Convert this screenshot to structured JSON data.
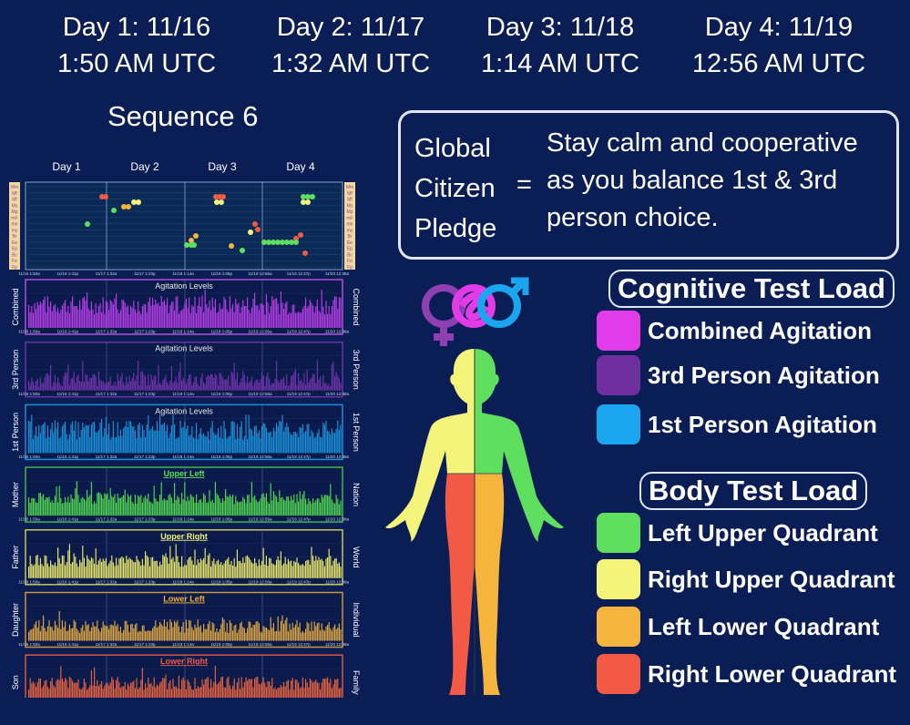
{
  "days": [
    {
      "date": "Day 1:  11/16",
      "time": "1:50 AM UTC"
    },
    {
      "date": "Day 2:  11/17",
      "time": "1:32 AM UTC"
    },
    {
      "date": "Day 3:  11/18",
      "time": "1:14 AM UTC"
    },
    {
      "date": "Day 4:  11/19",
      "time": "12:56 AM UTC"
    }
  ],
  "sequence_title": "Sequence 6",
  "pledge": {
    "left_lines": [
      "Global",
      "Citizen",
      "Pledge"
    ],
    "equals": "=",
    "text_lines": [
      "Stay calm and cooperative",
      "as you balance 1st & 3rd",
      "person choice."
    ]
  },
  "cognitive": {
    "heading": "Cognitive Test Load",
    "items": [
      {
        "label": "Combined Agitation",
        "color": "#e23ce8"
      },
      {
        "label": "3rd Person Agitation",
        "color": "#6f2f9f"
      },
      {
        "label": "1st Person Agitation",
        "color": "#19a6ee"
      }
    ]
  },
  "body": {
    "heading": "Body Test Load",
    "items": [
      {
        "label": "Left Upper Quadrant",
        "color": "#5ee05e"
      },
      {
        "label": "Right Upper Quadrant",
        "color": "#f4f47a"
      },
      {
        "label": "Left Lower Quadrant",
        "color": "#f5b43c"
      },
      {
        "label": "Right Lower Quadrant",
        "color": "#f35a45"
      }
    ]
  },
  "top_chart": {
    "day_labels": [
      "Day 1",
      "Day 2",
      "Day 3",
      "Day 4"
    ],
    "y_labels": [
      "Mm",
      "Mf",
      "Mf",
      "Ms",
      "Mp",
      "mF",
      "me",
      "my",
      "Br",
      "Ee",
      "Ep",
      "Bc",
      "Fe",
      "Fp"
    ],
    "x_ticks": [
      "11/16 1:50a",
      "11/16 1:41p",
      "11/17 1:32a",
      "11/17 1:23p",
      "11/18 1:14a",
      "11/18 1:05p",
      "11/19 12:56a",
      "11/19 12:47p",
      "11/20 12:38a"
    ]
  },
  "panels": [
    {
      "title": "Agitation Levels",
      "left": "Combined",
      "right": "Combined",
      "color": "#b23ce6",
      "border": "#b14fd8",
      "title_color": "#e8e8e8"
    },
    {
      "title": "Agitation Levels",
      "left": "3rd Person",
      "right": "3rd Person",
      "color": "#6d32a8",
      "border": "#6d32a8",
      "title_color": "#e8e8e8"
    },
    {
      "title": "Agitation Levels",
      "left": "1st Person",
      "right": "1st Person",
      "color": "#1a8fd8",
      "border": "#1a8fd8",
      "title_color": "#e8e8e8"
    },
    {
      "title": "Upper Left",
      "left": "Mother",
      "right": "Nation",
      "color": "#4fd04f",
      "border": "#3fb84f",
      "title_color": "#5ee05e"
    },
    {
      "title": "Upper Right",
      "left": "Father",
      "right": "World",
      "color": "#e5e36a",
      "border": "#c9c85a",
      "title_color": "#f4f47a"
    },
    {
      "title": "Lower Left",
      "left": "Daughter",
      "right": "Individual",
      "color": "#d9a442",
      "border": "#c9963a",
      "title_color": "#f5b43c"
    },
    {
      "title": "Lower Right",
      "left": "Son",
      "right": "Family",
      "color": "#e0603f",
      "border": "#d85a40",
      "title_color": "#f35a45"
    }
  ],
  "panel_x_ticks": [
    "11/16 1:50a",
    "11/16 1:41p",
    "11/17 1:32a",
    "11/17 1:23p",
    "11/18 1:14a",
    "11/18 1:05p",
    "11/19 12:56a",
    "11/19 12:47p",
    "11/20 12:38a"
  ]
}
